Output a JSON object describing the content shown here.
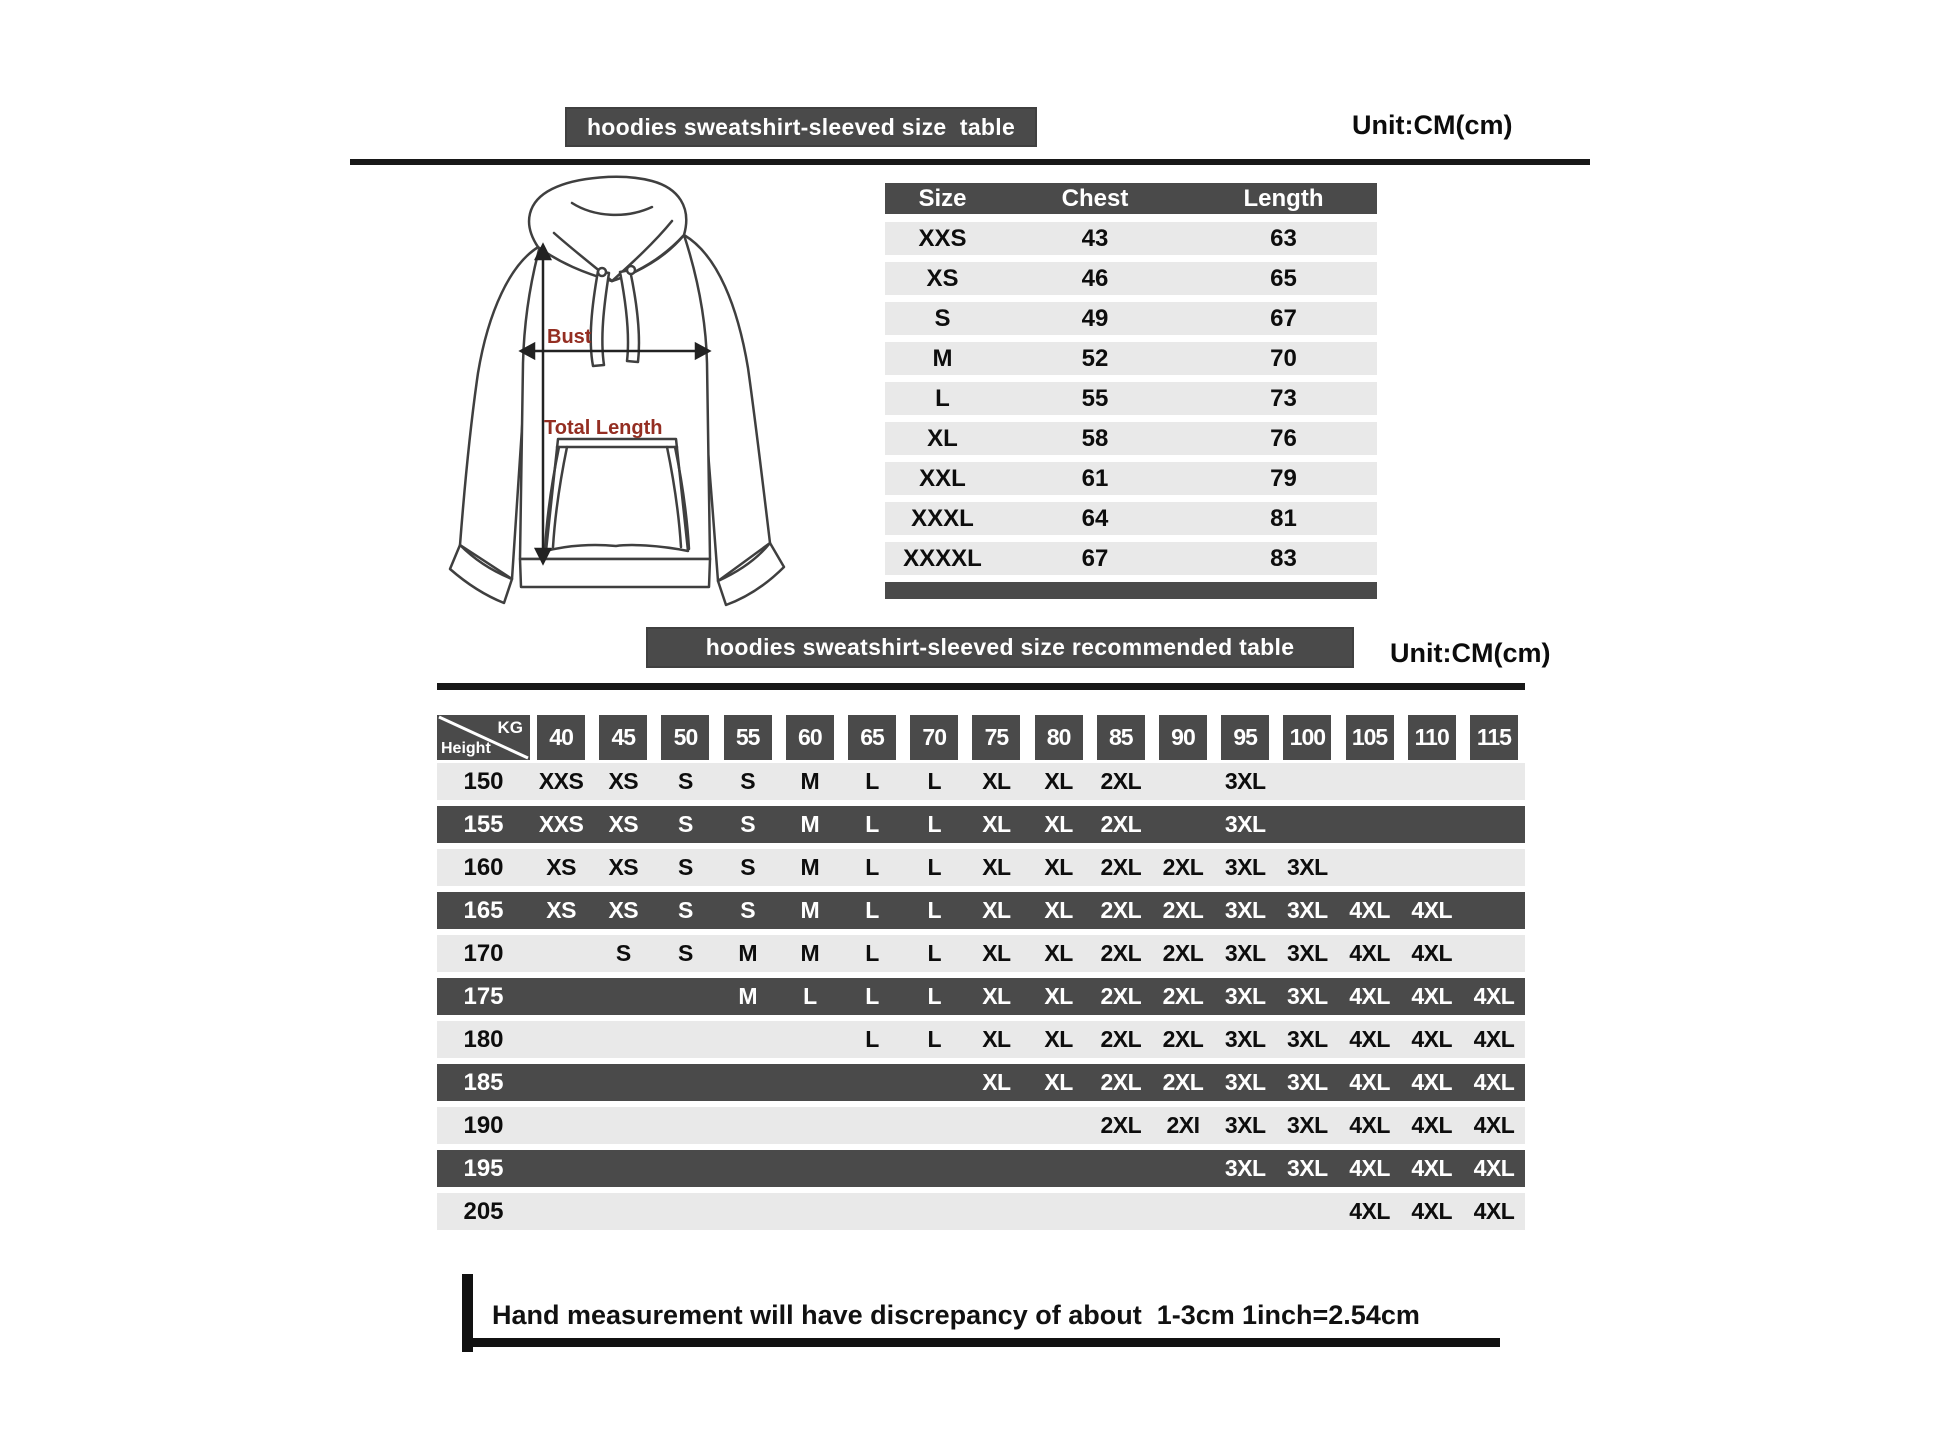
{
  "header1": {
    "title": "hoodies sweatshirt-sleeved size  table",
    "unit": "Unit:CM(cm)"
  },
  "header2": {
    "title": "hoodies sweatshirt-sleeved size recommended table",
    "unit": "Unit:CM(cm)"
  },
  "diagram": {
    "bust_label": "Bust",
    "total_length_label": "Total Length",
    "label_color": "#942e22"
  },
  "size_table": {
    "columns": [
      "Size",
      "Chest",
      "Length"
    ],
    "rows": [
      [
        "XXS",
        "43",
        "63"
      ],
      [
        "XS",
        "46",
        "65"
      ],
      [
        "S",
        "49",
        "67"
      ],
      [
        "M",
        "52",
        "70"
      ],
      [
        "L",
        "55",
        "73"
      ],
      [
        "XL",
        "58",
        "76"
      ],
      [
        "XXL",
        "61",
        "79"
      ],
      [
        "XXXL",
        "64",
        "81"
      ],
      [
        "XXXXL",
        "67",
        "83"
      ]
    ]
  },
  "recommended_table": {
    "corner": {
      "top_right": "KG",
      "bottom_left": "Height"
    },
    "weights": [
      "40",
      "45",
      "50",
      "55",
      "60",
      "65",
      "70",
      "75",
      "80",
      "85",
      "90",
      "95",
      "100",
      "105",
      "110",
      "115"
    ],
    "rows": [
      {
        "height": "150",
        "cells": [
          "XXS",
          "XS",
          "S",
          "S",
          "M",
          "L",
          "L",
          "XL",
          "XL",
          "2XL",
          "",
          "3XL",
          "",
          "",
          "",
          ""
        ]
      },
      {
        "height": "155",
        "cells": [
          "XXS",
          "XS",
          "S",
          "S",
          "M",
          "L",
          "L",
          "XL",
          "XL",
          "2XL",
          "",
          "3XL",
          "",
          "",
          "",
          ""
        ]
      },
      {
        "height": "160",
        "cells": [
          "XS",
          "XS",
          "S",
          "S",
          "M",
          "L",
          "L",
          "XL",
          "XL",
          "2XL",
          "2XL",
          "3XL",
          "3XL",
          "",
          "",
          ""
        ]
      },
      {
        "height": "165",
        "cells": [
          "XS",
          "XS",
          "S",
          "S",
          "M",
          "L",
          "L",
          "XL",
          "XL",
          "2XL",
          "2XL",
          "3XL",
          "3XL",
          "4XL",
          "4XL",
          ""
        ]
      },
      {
        "height": "170",
        "cells": [
          "",
          "S",
          "S",
          "M",
          "M",
          "L",
          "L",
          "XL",
          "XL",
          "2XL",
          "2XL",
          "3XL",
          "3XL",
          "4XL",
          "4XL",
          ""
        ]
      },
      {
        "height": "175",
        "cells": [
          "",
          "",
          "",
          "M",
          "L",
          "L",
          "L",
          "XL",
          "XL",
          "2XL",
          "2XL",
          "3XL",
          "3XL",
          "4XL",
          "4XL",
          "4XL"
        ]
      },
      {
        "height": "180",
        "cells": [
          "",
          "",
          "",
          "",
          "",
          "L",
          "L",
          "XL",
          "XL",
          "2XL",
          "2XL",
          "3XL",
          "3XL",
          "4XL",
          "4XL",
          "4XL"
        ]
      },
      {
        "height": "185",
        "cells": [
          "",
          "",
          "",
          "",
          "",
          "",
          "",
          "XL",
          "XL",
          "2XL",
          "2XL",
          "3XL",
          "3XL",
          "4XL",
          "4XL",
          "4XL"
        ]
      },
      {
        "height": "190",
        "cells": [
          "",
          "",
          "",
          "",
          "",
          "",
          "",
          "",
          "",
          "2XL",
          "2XI",
          "3XL",
          "3XL",
          "4XL",
          "4XL",
          "4XL"
        ]
      },
      {
        "height": "195",
        "cells": [
          "",
          "",
          "",
          "",
          "",
          "",
          "",
          "",
          "",
          "",
          "",
          "3XL",
          "3XL",
          "4XL",
          "4XL",
          "4XL"
        ]
      },
      {
        "height": "205",
        "cells": [
          "",
          "",
          "",
          "",
          "",
          "",
          "",
          "",
          "",
          "",
          "",
          "",
          "",
          "4XL",
          "4XL",
          "4XL"
        ]
      }
    ]
  },
  "footer": {
    "note": "Hand measurement will have discrepancy of about  1-3cm",
    "conversion": "1inch=2.54cm"
  },
  "colors": {
    "bar_dark": "#4a4a4a",
    "row_light": "#e9e9e9",
    "accent_red": "#942e22",
    "line_black": "#111111"
  }
}
